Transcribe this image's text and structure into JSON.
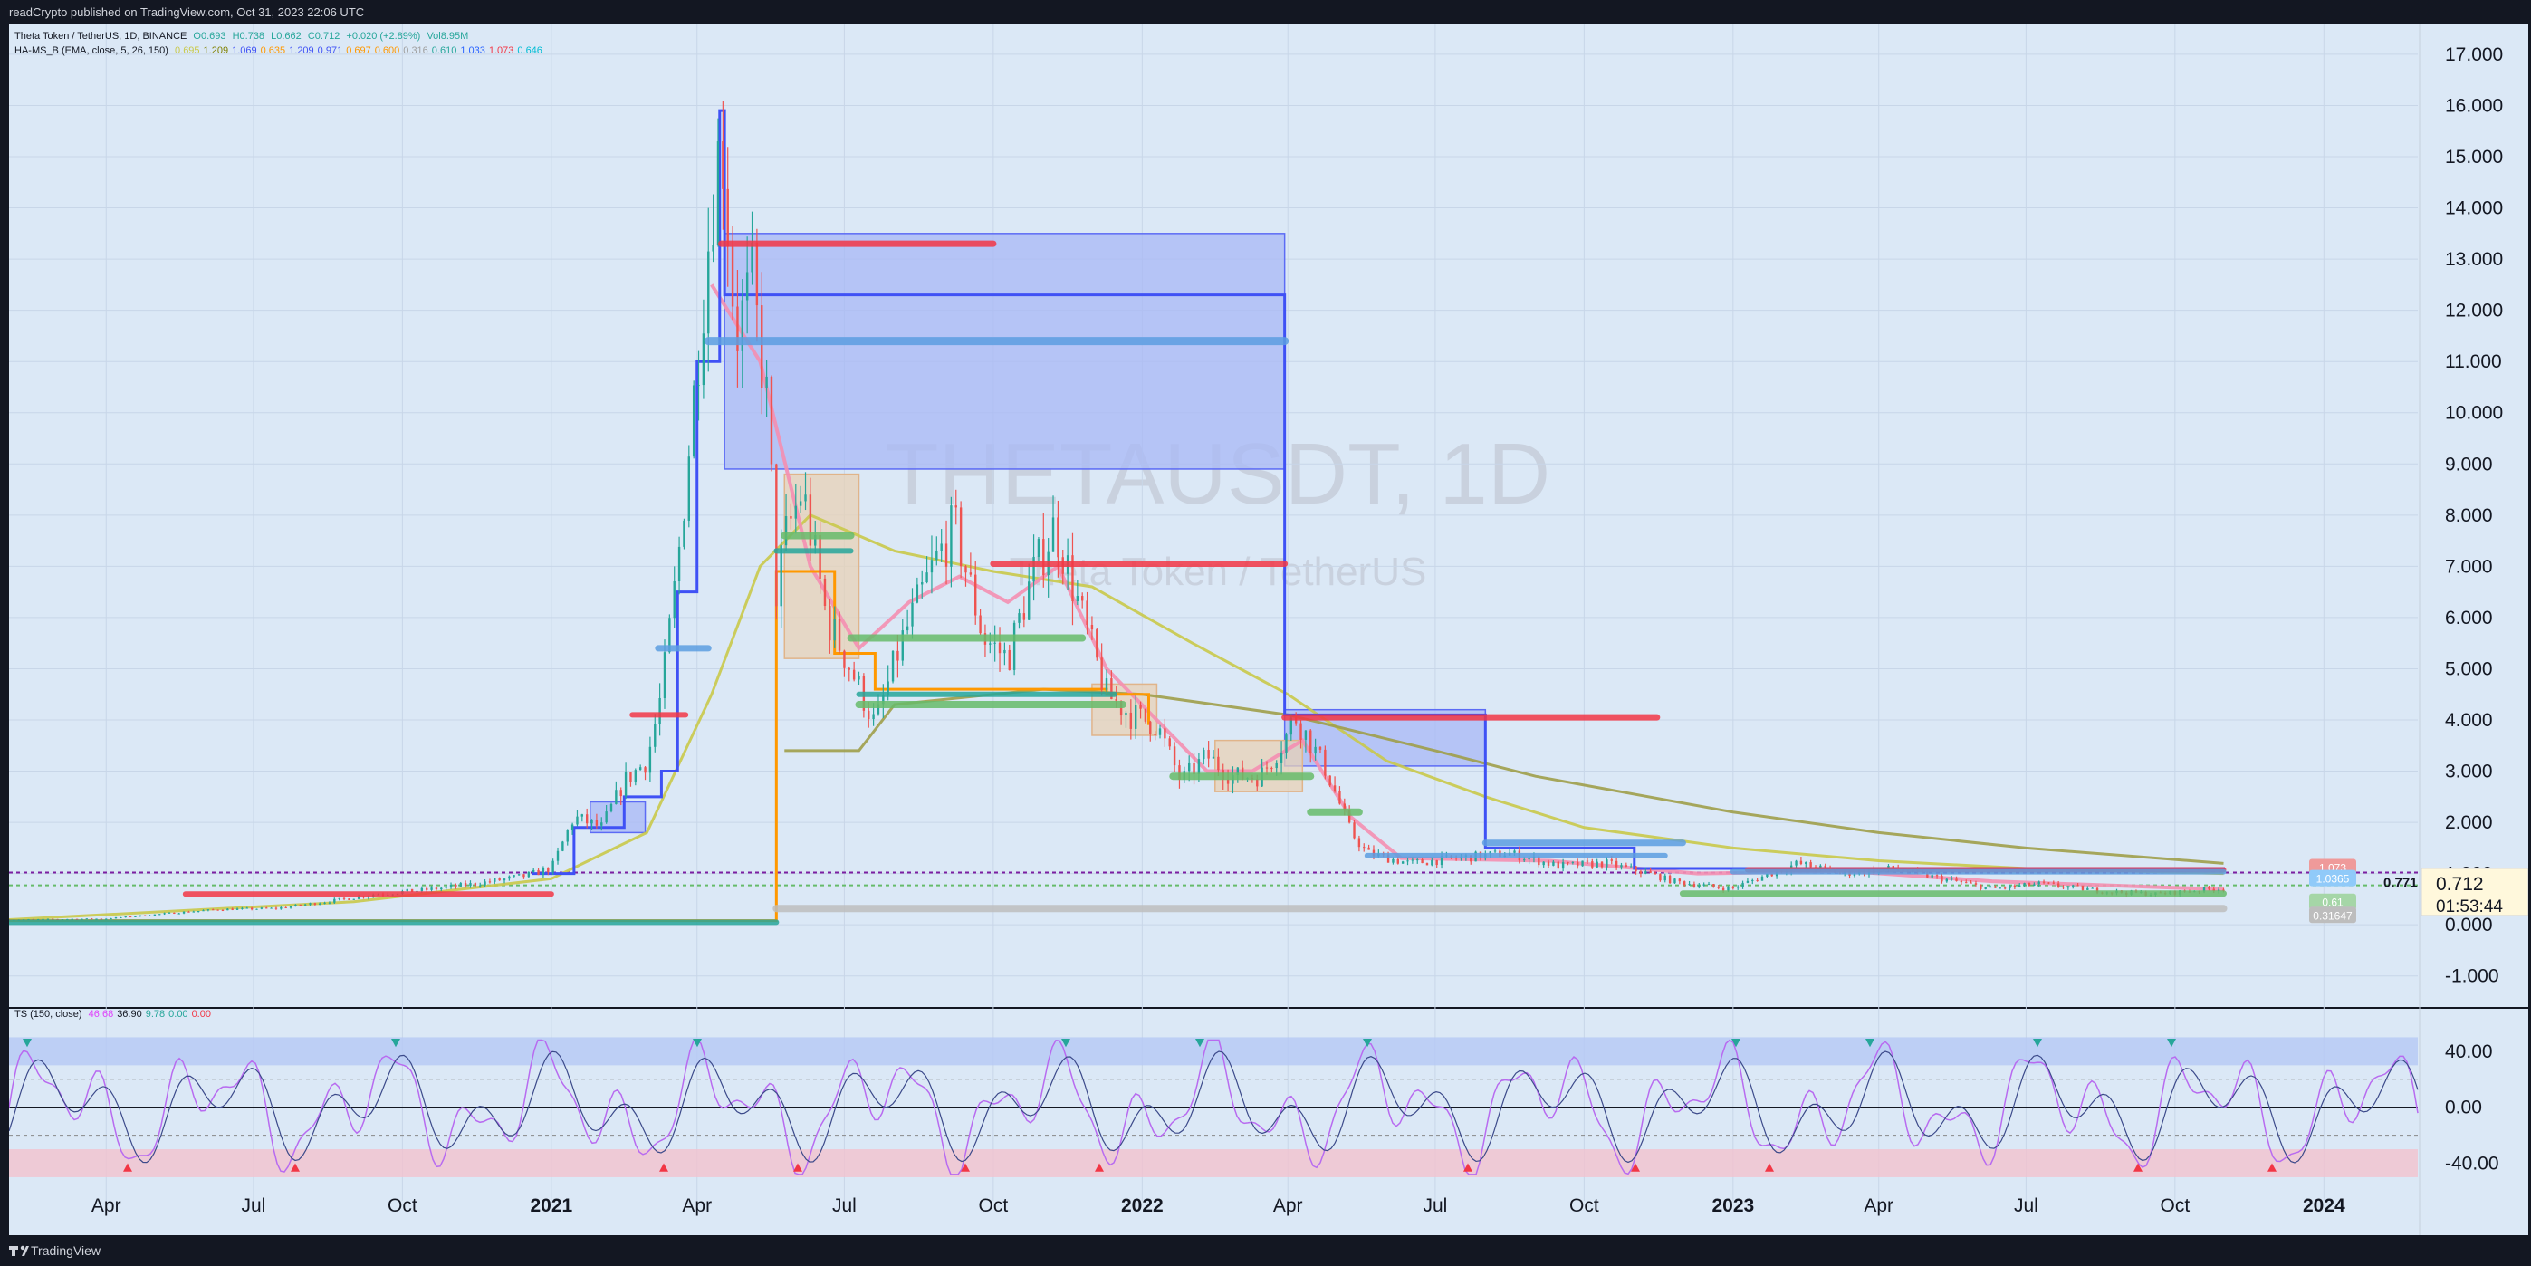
{
  "header": {
    "publisher": "readCrypto published on TradingView.com, Oct 31, 2023 22:06 UTC"
  },
  "legend_main": {
    "symbol": "Theta Token / TetherUS, 1D, BINANCE",
    "open": "O0.693",
    "high": "H0.738",
    "low": "L0.662",
    "close": "C0.712",
    "change": "+0.020 (+2.89%)",
    "volume": "Vol8.95M"
  },
  "legend_indicator": {
    "name": "HA-MS_B (EMA, close, 5, 26, 150)",
    "values": [
      "0.695",
      "1.209",
      "1.069",
      "0.635",
      "1.209",
      "0.971",
      "0.697",
      "0.600",
      "0.316",
      "0.610",
      "1.033",
      "1.073",
      "0.646"
    ],
    "colors": [
      "#c9c94a",
      "#808000",
      "#3f51f5",
      "#ff9800",
      "#3f51f5",
      "#3f51f5",
      "#ff9800",
      "#ff9800",
      "#9e9e9e",
      "#26a69a",
      "#2962ff",
      "#f23645",
      "#00bcd4"
    ]
  },
  "legend_ts": {
    "name": "TS (150, close)",
    "values": [
      "46.68",
      "36.90",
      "9.78",
      "0.00",
      "0.00"
    ],
    "colors": [
      "#e040fb",
      "#131722",
      "#26a69a",
      "#26a69a",
      "#f23645"
    ]
  },
  "watermark": {
    "symbol": "THETAUSDT, 1D",
    "description": "Theta Token / TetherUS"
  },
  "price_box": {
    "price": "0.712",
    "countdown": "01:53:44"
  },
  "price_tags": [
    {
      "value": "1.073",
      "bg": "#ef9a9a",
      "color": "#ffffff"
    },
    {
      "value": "1.0365",
      "bg": "#90caf9",
      "color": "#ffffff"
    },
    {
      "value": "0.61",
      "bg": "#a5d6a7",
      "color": "#ffffff"
    },
    {
      "value": "0.31647",
      "bg": "#bdbdbd",
      "color": "#ffffff"
    },
    {
      "value": "0.771",
      "bg": "none",
      "color": "#131722"
    }
  ],
  "footer": {
    "brand": "TradingView"
  },
  "chart_data": {
    "type": "candlestick",
    "title": "THETAUSDT, 1D",
    "price_axis": {
      "ticks": [
        "17.000",
        "16.000",
        "15.000",
        "14.000",
        "13.000",
        "12.000",
        "11.000",
        "10.000",
        "9.000",
        "8.000",
        "7.000",
        "6.000",
        "5.000",
        "4.000",
        "3.000",
        "2.000",
        "1.000",
        "0.000",
        "-1.000"
      ],
      "ylim": [
        -1.5,
        17.6
      ]
    },
    "oscillator_axis": {
      "ticks": [
        "40.00",
        "0.00",
        "-40.00"
      ]
    },
    "time_axis": {
      "labels": [
        "Apr",
        "Jul",
        "Oct",
        "2021",
        "Apr",
        "Jul",
        "Oct",
        "2022",
        "Apr",
        "Jul",
        "Oct",
        "2023",
        "Apr",
        "Jul",
        "Oct",
        "2024"
      ],
      "range": [
        "2020-02-01",
        "2024-02-28"
      ]
    },
    "price_series": [
      [
        "2020-02-01",
        0.1
      ],
      [
        "2020-04-01",
        0.12
      ],
      [
        "2020-05-20",
        0.25
      ],
      [
        "2020-06-10",
        0.3
      ],
      [
        "2020-07-15",
        0.32
      ],
      [
        "2020-08-15",
        0.45
      ],
      [
        "2020-09-15",
        0.6
      ],
      [
        "2020-10-15",
        0.68
      ],
      [
        "2020-11-15",
        0.8
      ],
      [
        "2020-12-15",
        0.95
      ],
      [
        "2021-01-01",
        1.1
      ],
      [
        "2021-01-15",
        2.1
      ],
      [
        "2021-02-01",
        1.9
      ],
      [
        "2021-02-15",
        2.8
      ],
      [
        "2021-03-01",
        3.2
      ],
      [
        "2021-03-10",
        4.5
      ],
      [
        "2021-03-20",
        7.0
      ],
      [
        "2021-04-01",
        11.0
      ],
      [
        "2021-04-10",
        14.0
      ],
      [
        "2021-04-16",
        15.5
      ],
      [
        "2021-04-25",
        11.5
      ],
      [
        "2021-05-05",
        12.5
      ],
      [
        "2021-05-15",
        10.0
      ],
      [
        "2021-05-20",
        6.5
      ],
      [
        "2021-05-25",
        7.5
      ],
      [
        "2021-06-05",
        8.5
      ],
      [
        "2021-06-20",
        6.0
      ],
      [
        "2021-07-05",
        5.0
      ],
      [
        "2021-07-20",
        3.9
      ],
      [
        "2021-08-05",
        5.5
      ],
      [
        "2021-08-25",
        7.0
      ],
      [
        "2021-09-07",
        7.8
      ],
      [
        "2021-09-25",
        5.6
      ],
      [
        "2021-10-10",
        5.2
      ],
      [
        "2021-10-25",
        6.8
      ],
      [
        "2021-11-08",
        7.8
      ],
      [
        "2021-11-25",
        6.0
      ],
      [
        "2021-12-10",
        4.5
      ],
      [
        "2021-12-25",
        4.1
      ],
      [
        "2022-01-10",
        3.9
      ],
      [
        "2022-01-25",
        2.8
      ],
      [
        "2022-02-10",
        3.3
      ],
      [
        "2022-02-25",
        2.9
      ],
      [
        "2022-03-15",
        2.9
      ],
      [
        "2022-03-30",
        3.6
      ],
      [
        "2022-04-05",
        4.1
      ],
      [
        "2022-04-25",
        3.0
      ],
      [
        "2022-05-10",
        1.8
      ],
      [
        "2022-05-20",
        1.4
      ],
      [
        "2022-06-15",
        1.2
      ],
      [
        "2022-07-15",
        1.3
      ],
      [
        "2022-08-15",
        1.4
      ],
      [
        "2022-09-15",
        1.15
      ],
      [
        "2022-10-15",
        1.2
      ],
      [
        "2022-11-10",
        1.0
      ],
      [
        "2022-11-25",
        0.85
      ],
      [
        "2022-12-30",
        0.7
      ],
      [
        "2023-01-20",
        0.95
      ],
      [
        "2023-02-10",
        1.2
      ],
      [
        "2023-03-10",
        1.0
      ],
      [
        "2023-04-10",
        1.1
      ],
      [
        "2023-05-10",
        0.9
      ],
      [
        "2023-06-10",
        0.7
      ],
      [
        "2023-07-10",
        0.8
      ],
      [
        "2023-08-20",
        0.65
      ],
      [
        "2023-09-20",
        0.6
      ],
      [
        "2023-10-20",
        0.69
      ],
      [
        "2023-10-31",
        0.712
      ]
    ],
    "ma_series": [
      {
        "color": "#c9c94a",
        "width": 3,
        "points": [
          [
            "2020-02-01",
            0.1
          ],
          [
            "2020-09-01",
            0.45
          ],
          [
            "2021-01-01",
            0.9
          ],
          [
            "2021-03-01",
            1.8
          ],
          [
            "2021-04-10",
            4.5
          ],
          [
            "2021-05-10",
            7.0
          ],
          [
            "2021-06-10",
            8.0
          ],
          [
            "2021-08-01",
            7.3
          ],
          [
            "2021-10-01",
            6.9
          ],
          [
            "2021-12-01",
            6.6
          ],
          [
            "2022-02-01",
            5.5
          ],
          [
            "2022-04-01",
            4.5
          ],
          [
            "2022-06-01",
            3.2
          ],
          [
            "2022-08-01",
            2.5
          ],
          [
            "2022-10-01",
            1.9
          ],
          [
            "2023-01-01",
            1.5
          ],
          [
            "2023-04-01",
            1.25
          ],
          [
            "2023-07-01",
            1.1
          ],
          [
            "2023-10-31",
            1.0
          ]
        ]
      },
      {
        "color": "#9e9e4a",
        "width": 3,
        "points": [
          [
            "2021-05-25",
            3.4
          ],
          [
            "2021-07-10",
            3.4
          ],
          [
            "2021-08-01",
            4.3
          ],
          [
            "2021-11-01",
            4.6
          ],
          [
            "2022-01-01",
            4.5
          ],
          [
            "2022-04-01",
            4.1
          ],
          [
            "2022-07-01",
            3.4
          ],
          [
            "2022-09-01",
            2.9
          ],
          [
            "2023-01-01",
            2.2
          ],
          [
            "2023-04-01",
            1.8
          ],
          [
            "2023-07-01",
            1.5
          ],
          [
            "2023-10-31",
            1.2
          ]
        ]
      },
      {
        "color": "#f48fb1",
        "width": 4,
        "points": [
          [
            "2021-04-10",
            12.5
          ],
          [
            "2021-05-10",
            11.0
          ],
          [
            "2021-06-10",
            7.0
          ],
          [
            "2021-07-10",
            5.4
          ],
          [
            "2021-08-10",
            6.3
          ],
          [
            "2021-09-10",
            6.8
          ],
          [
            "2021-10-10",
            6.3
          ],
          [
            "2021-11-10",
            7.0
          ],
          [
            "2021-12-10",
            5.0
          ],
          [
            "2022-01-10",
            4.0
          ],
          [
            "2022-02-10",
            3.0
          ],
          [
            "2022-03-10",
            3.0
          ],
          [
            "2022-04-10",
            3.6
          ],
          [
            "2022-05-10",
            2.1
          ],
          [
            "2022-06-10",
            1.3
          ],
          [
            "2022-09-10",
            1.25
          ],
          [
            "2022-12-10",
            1.0
          ],
          [
            "2023-03-10",
            1.05
          ],
          [
            "2023-06-10",
            0.85
          ],
          [
            "2023-10-31",
            0.69
          ]
        ]
      }
    ],
    "step_lines": [
      {
        "color": "#3f51f5",
        "width": 3,
        "points": [
          [
            "2020-12-20",
            1.0
          ],
          [
            "2021-01-15",
            1.9
          ],
          [
            "2021-02-15",
            2.5
          ],
          [
            "2021-03-10",
            3.0
          ],
          [
            "2021-03-20",
            6.5
          ],
          [
            "2021-04-01",
            11.0
          ],
          [
            "2021-04-15",
            15.9
          ],
          [
            "2021-04-18",
            12.3
          ],
          [
            "2022-03-30",
            12.3
          ],
          [
            "2022-03-30",
            4.1
          ],
          [
            "2022-08-01",
            4.0
          ],
          [
            "2022-08-01",
            1.5
          ],
          [
            "2022-11-01",
            1.5
          ],
          [
            "2022-11-01",
            1.1
          ],
          [
            "2023-10-31",
            1.07
          ]
        ]
      },
      {
        "color": "#ff9800",
        "width": 3,
        "points": [
          [
            "2020-02-01",
            0.08
          ],
          [
            "2021-05-20",
            0.08
          ],
          [
            "2021-05-20",
            6.9
          ],
          [
            "2021-06-25",
            6.9
          ],
          [
            "2021-06-25",
            5.3
          ],
          [
            "2021-07-20",
            4.6
          ],
          [
            "2021-12-10",
            4.5
          ],
          [
            "2022-01-05",
            3.9
          ]
        ]
      }
    ],
    "levels": [
      {
        "color": "#f23645",
        "width": 7,
        "x0": "2021-04-16",
        "x1": "2021-10-01",
        "y": 13.3
      },
      {
        "color": "#f23645",
        "width": 7,
        "x0": "2021-10-01",
        "x1": "2022-03-30",
        "y": 7.05
      },
      {
        "color": "#f23645",
        "width": 7,
        "x0": "2022-03-30",
        "x1": "2022-11-15",
        "y": 4.05
      },
      {
        "color": "#f23645",
        "width": 6,
        "x0": "2021-02-20",
        "x1": "2021-03-25",
        "y": 4.1
      },
      {
        "color": "#f23645",
        "width": 6,
        "x0": "2020-05-20",
        "x1": "2021-01-01",
        "y": 0.6
      },
      {
        "color": "#f23645",
        "width": 6,
        "x0": "2023-01-10",
        "x1": "2023-10-31",
        "y": 1.073
      },
      {
        "color": "#5c9ee0",
        "width": 9,
        "x0": "2021-04-08",
        "x1": "2022-03-30",
        "y": 11.4
      },
      {
        "color": "#5c9ee0",
        "width": 7,
        "x0": "2021-03-08",
        "x1": "2021-04-08",
        "y": 5.4
      },
      {
        "color": "#5c9ee0",
        "width": 7,
        "x0": "2022-08-01",
        "x1": "2022-12-01",
        "y": 1.6
      },
      {
        "color": "#5c9ee0",
        "width": 6,
        "x0": "2022-05-20",
        "x1": "2022-11-20",
        "y": 1.35
      },
      {
        "color": "#5c9ee0",
        "width": 6,
        "x0": "2023-01-01",
        "x1": "2023-10-31",
        "y": 1.0365
      },
      {
        "color": "#66bb6a",
        "width": 8,
        "x0": "2021-05-25",
        "x1": "2021-07-05",
        "y": 7.6
      },
      {
        "color": "#66bb6a",
        "width": 8,
        "x0": "2021-07-05",
        "x1": "2021-11-25",
        "y": 5.6
      },
      {
        "color": "#66bb6a",
        "width": 8,
        "x0": "2021-07-10",
        "x1": "2021-12-20",
        "y": 4.3
      },
      {
        "color": "#66bb6a",
        "width": 8,
        "x0": "2022-01-20",
        "x1": "2022-04-15",
        "y": 2.9
      },
      {
        "color": "#66bb6a",
        "width": 8,
        "x0": "2022-04-15",
        "x1": "2022-05-15",
        "y": 2.2
      },
      {
        "color": "#66bb6a",
        "width": 7,
        "x0": "2022-12-01",
        "x1": "2023-10-31",
        "y": 0.61
      },
      {
        "color": "#26a69a",
        "width": 6,
        "x0": "2021-05-20",
        "x1": "2021-07-05",
        "y": 7.3
      },
      {
        "color": "#26a69a",
        "width": 6,
        "x0": "2021-07-10",
        "x1": "2021-12-15",
        "y": 4.5
      },
      {
        "color": "#26a69a",
        "width": 6,
        "x0": "2020-02-01",
        "x1": "2021-05-20",
        "y": 0.05
      },
      {
        "color": "#bdbdbd",
        "width": 8,
        "x0": "2021-05-20",
        "x1": "2023-10-31",
        "y": 0.31647
      }
    ],
    "boxes": [
      {
        "fill": "#a8b8f5",
        "stroke": "#5c6bf5",
        "x0": "2021-04-18",
        "x1": "2022-03-30",
        "y0": 8.9,
        "y1": 13.5
      },
      {
        "fill": "#e8d2b5",
        "stroke": "#e0b48a",
        "x0": "2021-05-25",
        "x1": "2021-07-10",
        "y0": 5.2,
        "y1": 8.8
      },
      {
        "fill": "#e8d2b5",
        "stroke": "#e0b48a",
        "x0": "2021-12-01",
        "x1": "2022-01-10",
        "y0": 3.7,
        "y1": 4.7
      },
      {
        "fill": "#a8b8f5",
        "stroke": "#5c6bf5",
        "x0": "2022-03-30",
        "x1": "2022-08-01",
        "y0": 3.1,
        "y1": 4.2
      },
      {
        "fill": "#e8d2b5",
        "stroke": "#e0b48a",
        "x0": "2022-02-15",
        "x1": "2022-04-10",
        "y0": 2.6,
        "y1": 3.6
      },
      {
        "fill": "#a8b8f5",
        "stroke": "#5c6bf5",
        "x0": "2021-01-25",
        "x1": "2021-02-28",
        "y0": 1.8,
        "y1": 2.4
      }
    ],
    "h_lines": [
      {
        "color": "#7b1fa2",
        "y": 1.02,
        "dash": "4,4"
      },
      {
        "color": "#66bb6a",
        "y": 0.77,
        "dash": "4,4"
      }
    ]
  }
}
